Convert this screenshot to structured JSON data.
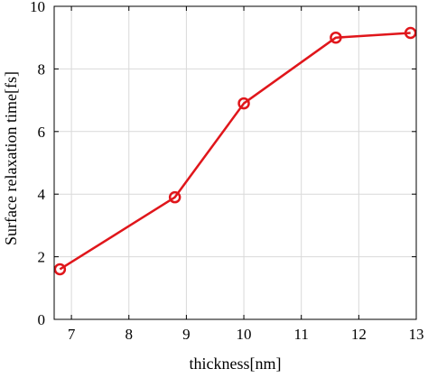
{
  "chart_data": {
    "type": "line",
    "title": "",
    "xlabel": "thickness[nm]",
    "ylabel": "Surface relaxation time[fs]",
    "xlim": [
      6.7,
      13
    ],
    "ylim": [
      0,
      10
    ],
    "xticks": [
      7,
      8,
      9,
      10,
      11,
      12,
      13
    ],
    "yticks": [
      0,
      2,
      4,
      6,
      8,
      10
    ],
    "grid": true,
    "legend": "none",
    "series": [
      {
        "color": "#e0161b",
        "marker": "circle-open",
        "x": [
          6.8,
          8.8,
          10.0,
          11.6,
          12.9
        ],
        "y": [
          1.6,
          3.9,
          6.9,
          9.0,
          9.15
        ]
      }
    ]
  }
}
